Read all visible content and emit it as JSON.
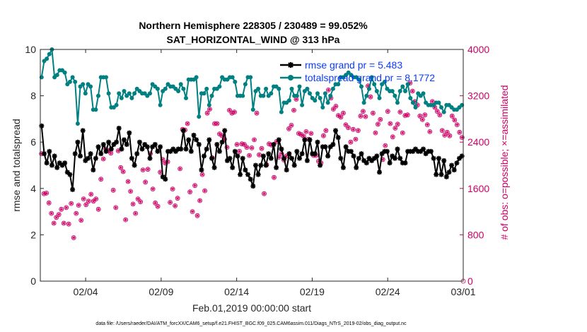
{
  "chart_data": {
    "type": "line",
    "title": "Northern Hemisphere 228305 / 230489 = 99.052%",
    "subtitle": "SAT_HORIZONTAL_WIND @ 313 hPa",
    "xlabel": "Feb.01,2019 00:00:00 start",
    "ylabel": "rmse and totalspread",
    "ylabel_right": "# of obs: o=possible; ×=assimilated",
    "xlim": [
      0,
      28
    ],
    "ylim": [
      0,
      10
    ],
    "ylim_right": [
      0,
      4000
    ],
    "x_ticks": [
      3,
      8,
      13,
      18,
      23,
      28
    ],
    "x_tick_labels": [
      "02/04",
      "02/09",
      "02/14",
      "02/19",
      "02/24",
      "03/01"
    ],
    "y_ticks": [
      0,
      2,
      4,
      6,
      8,
      10
    ],
    "y_tick_labels": [
      "0",
      "2",
      "4",
      "6",
      "8",
      "10"
    ],
    "y_ticks_right": [
      0,
      800,
      1600,
      2400,
      3200,
      4000
    ],
    "y_tick_labels_right": [
      "0",
      "800",
      "1600",
      "2400",
      "3200",
      "4000"
    ],
    "legend_position": "top-right",
    "series": [
      {
        "name": "rmse grand pr = 5.483",
        "color": "#000000",
        "marker": "asterisk",
        "values": [
          6.7,
          5.5,
          5.1,
          5.6,
          5.0,
          5.4,
          4.9,
          5.1,
          5.0,
          5.1,
          4.7,
          4.6,
          3.95,
          5.5,
          6.0,
          5.4,
          6.5,
          5.2,
          5.3,
          5.5,
          4.8,
          5.3,
          5.8,
          5.5,
          5.9,
          5.6,
          6.0,
          5.7,
          5.9,
          6.0,
          6.6,
          5.7,
          6.1,
          5.9,
          6.4,
          5.3,
          5.0,
          5.5,
          6.0,
          5.7,
          5.9,
          5.8,
          5.3,
          5.8,
          5.9,
          5.6,
          5.8,
          4.5,
          4.4,
          5.6,
          5.6,
          5.7,
          5.6,
          5.7,
          5.7,
          6.5,
          5.7,
          6.1,
          5.6,
          6.3,
          6.1,
          5.9,
          4.8,
          5.4,
          5.7,
          6.1,
          5.3,
          4.9,
          5.9,
          5.6,
          6.0,
          6.5,
          5.2,
          5.3,
          4.9,
          5.6,
          5.4,
          4.6,
          5.3,
          4.8,
          4.6,
          4.4,
          4.1,
          5.0,
          4.6,
          5.0,
          5.4,
          5.0,
          5.5,
          5.3,
          5.9,
          4.9,
          6.1,
          5.7,
          5.3,
          4.8,
          5.5,
          5.3,
          5.0,
          5.6,
          5.3,
          5.5,
          6.1,
          5.2,
          6.1,
          5.5,
          5.5,
          6.0,
          5.0,
          5.8,
          5.8,
          5.4,
          5.8,
          5.9,
          6.5,
          6.2,
          5.3,
          4.9,
          5.8,
          5.6,
          5.6,
          5.4,
          4.9,
          5.3,
          5.5,
          5.2,
          5.1,
          5.3,
          5.2,
          5.3,
          5.4,
          4.7,
          5.5,
          5.6,
          5.6,
          5.1,
          5.4,
          5.3,
          5.7,
          5.3,
          5.1,
          5.1,
          5.6,
          5.6,
          5.6,
          5.7,
          5.6,
          5.6,
          5.7,
          5.5,
          5.6,
          5.6,
          5.3,
          4.6,
          5.3,
          4.6,
          5.2,
          4.5,
          4.7,
          5.0,
          4.8,
          5.1,
          5.3,
          5.4
        ]
      },
      {
        "name": "totalspread grand pr = 8.1772",
        "color": "#008080",
        "marker": "filled-circle",
        "values": [
          8.8,
          9.5,
          9.6,
          9.8,
          10.0,
          8.8,
          8.9,
          9.1,
          9.1,
          9.0,
          8.5,
          8.6,
          8.8,
          8.6,
          6.8,
          8.4,
          8.5,
          8.1,
          8.5,
          8.4,
          7.4,
          7.4,
          8.0,
          8.8,
          8.8,
          8.8,
          8.1,
          7.5,
          7.5,
          7.6,
          8.1,
          7.9,
          8.2,
          8.0,
          8.1,
          7.9,
          8.1,
          8.3,
          8.2,
          8.1,
          8.1,
          8.0,
          8.1,
          8.5,
          8.4,
          8.3,
          7.6,
          8.2,
          8.3,
          8.5,
          8.4,
          8.4,
          8.3,
          8.2,
          8.5,
          8.3,
          7.9,
          8.7,
          8.7,
          8.7,
          8.8,
          7.1,
          8.1,
          8.1,
          8.3,
          7.6,
          8.0,
          8.3,
          8.3,
          8.4,
          8.8,
          8.7,
          8.7,
          8.8,
          8.8,
          8.6,
          8.0,
          8.0,
          8.0,
          8.5,
          8.8,
          8.8,
          7.4,
          8.2,
          8.3,
          8.0,
          8.0,
          8.3,
          8.0,
          8.1,
          8.4,
          8.4,
          8.3,
          7.3,
          7.7,
          7.7,
          7.8,
          8.3,
          8.0,
          8.0,
          8.4,
          7.6,
          8.2,
          8.3,
          8.1,
          7.9,
          7.8,
          8.1,
          7.9,
          7.5,
          8.1,
          7.7,
          8.0,
          8.3,
          8.5,
          8.5,
          8.8,
          8.8,
          8.9,
          9.0,
          8.9,
          8.8,
          8.8,
          8.7,
          8.4,
          7.7,
          8.0,
          8.3,
          8.8,
          8.5,
          8.2,
          7.9,
          8.5,
          8.6,
          8.3,
          8.2,
          8.2,
          8.0,
          7.7,
          8.2,
          8.4,
          8.2,
          8.5,
          7.9,
          7.7,
          7.5,
          8.1,
          8.0,
          8.1,
          7.7,
          7.6,
          7.6,
          7.6,
          7.7,
          7.7,
          7.5,
          7.3,
          7.6,
          7.6,
          7.5,
          7.4,
          7.4,
          7.5,
          7.6
        ]
      }
    ],
    "obs_possible": [
      2200,
      1510,
      1520,
      1350,
      1170,
      1000,
      1100,
      1150,
      1240,
      1000,
      1270,
      985,
      1340,
      750,
      1170,
      1310,
      1050,
      1420,
      1320,
      1380,
      1500,
      1380,
      1420,
      1240,
      1760,
      2110,
      2280,
      2250,
      2210,
      1570,
      1270,
      2250,
      1960,
      1890,
      1060,
      1720,
      1550,
      1330,
      1170,
      1420,
      1370,
      1920,
      1710,
      1930,
      2200,
      1590,
      1350,
      1290,
      1880,
      2100,
      2040,
      2060,
      1360,
      1590,
      1300,
      1430,
      1940,
      2620,
      2610,
      2720,
      1540,
      1200,
      1650,
      1130,
      1390,
      1840,
      1560,
      2900,
      2970,
      2130,
      2720,
      2720,
      2540,
      2510,
      2450,
      2310,
      2950,
      2900,
      2920,
      2360,
      2240,
      2370,
      2360,
      2310,
      2170,
      2300,
      2440,
      2900,
      2180,
      2290,
      1510,
      2010,
      2370,
      2350,
      1790,
      2410,
      2140,
      2200,
      2090,
      2160,
      2630,
      2690,
      2950,
      3140,
      2550,
      2530,
      2500,
      2580,
      2450,
      2550,
      2170,
      2170,
      2070,
      2040,
      2510,
      2600,
      3300,
      3160,
      2970,
      3020,
      2860,
      2830,
      2900,
      2700,
      2650,
      2400,
      2620,
      2450,
      2600,
      2850,
      2930,
      2840,
      3370,
      3180,
      2900,
      2560,
      2710,
      2790,
      2100,
      2340,
      2930,
      2720,
      2490,
      2640,
      2710,
      2920,
      2560,
      2860,
      2870,
      3420,
      3280,
      3100,
      3040,
      2850,
      2790,
      2870,
      2700,
      2580,
      3100,
      3000,
      2930,
      2870,
      2600,
      2520,
      2570,
      2510,
      2850,
      2780,
      2700,
      2570,
      2480
    ]
  },
  "footer": "data file: /Users/raeder/DAI/ATM_forcXX/CAM6_setup/f.e21.FHIST_BGC.f09_025.CAM6assim.011/Diags_NTrS_2019-02/obs_diag_output.nc"
}
